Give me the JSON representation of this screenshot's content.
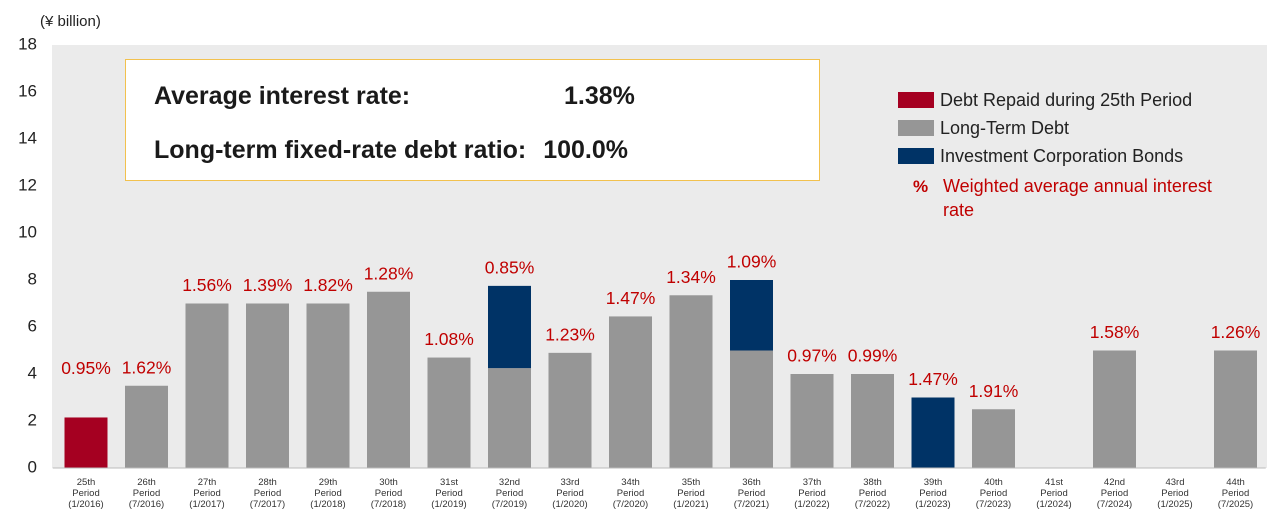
{
  "chart_data": {
    "type": "bar",
    "stacked": true,
    "unit_label": "(¥ billion)",
    "categories": [
      [
        "25th",
        "Period",
        "(1/2016)"
      ],
      [
        "26th",
        "Period",
        "(7/2016)"
      ],
      [
        "27th",
        "Period",
        "(1/2017)"
      ],
      [
        "28th",
        "Period",
        "(7/2017)"
      ],
      [
        "29th",
        "Period",
        "(1/2018)"
      ],
      [
        "30th",
        "Period",
        "(7/2018)"
      ],
      [
        "31st",
        "Period",
        "(1/2019)"
      ],
      [
        "32nd",
        "Period",
        "(7/2019)"
      ],
      [
        "33rd",
        "Period",
        "(1/2020)"
      ],
      [
        "34th",
        "Period",
        "(7/2020)"
      ],
      [
        "35th",
        "Period",
        "(1/2021)"
      ],
      [
        "36th",
        "Period",
        "(7/2021)"
      ],
      [
        "37th",
        "Period",
        "(1/2022)"
      ],
      [
        "38th",
        "Period",
        "(7/2022)"
      ],
      [
        "39th",
        "Period",
        "(1/2023)"
      ],
      [
        "40th",
        "Period",
        "(7/2023)"
      ],
      [
        "41st",
        "Period",
        "(1/2024)"
      ],
      [
        "42nd",
        "Period",
        "(7/2024)"
      ],
      [
        "43rd",
        "Period",
        "(1/2025)"
      ],
      [
        "44th",
        "Period",
        "(7/2025)"
      ]
    ],
    "series": [
      {
        "name": "Debt Repaid during 25th Period",
        "color": "#a50021",
        "values": [
          2.15,
          null,
          null,
          null,
          null,
          null,
          null,
          null,
          null,
          null,
          null,
          null,
          null,
          null,
          null,
          null,
          null,
          null,
          null,
          null
        ]
      },
      {
        "name": "Long-Term Debt",
        "color": "#969696",
        "values": [
          null,
          3.5,
          7.0,
          7.0,
          7.0,
          7.5,
          4.7,
          4.25,
          4.9,
          6.45,
          7.35,
          5.0,
          4.0,
          4.0,
          null,
          2.5,
          null,
          5.0,
          null,
          5.0
        ]
      },
      {
        "name": "Investment Corporation Bonds",
        "color": "#003366",
        "values": [
          null,
          null,
          null,
          null,
          null,
          null,
          null,
          3.5,
          null,
          null,
          null,
          3.0,
          null,
          null,
          3.0,
          null,
          null,
          null,
          null,
          null
        ]
      }
    ],
    "rates": {
      "name": "Weighted average annual interest rate",
      "symbol": "%",
      "color": "#c00000",
      "values": [
        0.95,
        1.62,
        1.56,
        1.39,
        1.82,
        1.28,
        1.08,
        0.85,
        1.23,
        1.47,
        1.34,
        1.09,
        0.97,
        0.99,
        1.47,
        1.91,
        null,
        1.58,
        null,
        1.26
      ],
      "value_labels": [
        "0.95%",
        "1.62%",
        "1.56%",
        "1.39%",
        "1.82%",
        "1.28%",
        "1.08%",
        "0.85%",
        "1.23%",
        "1.47%",
        "1.34%",
        "1.09%",
        "0.97%",
        "0.99%",
        "1.47%",
        "1.91%",
        null,
        "1.58%",
        null,
        "1.26%"
      ]
    },
    "annotations": {
      "avg_label": "Average interest rate:",
      "avg_value": "1.38%",
      "fixed_label": "Long-term fixed-rate debt ratio:",
      "fixed_value": "100.0%"
    },
    "ylim": [
      0,
      18
    ],
    "yticks": [
      0,
      2,
      4,
      6,
      8,
      10,
      12,
      14,
      16,
      18
    ],
    "grid": false
  }
}
